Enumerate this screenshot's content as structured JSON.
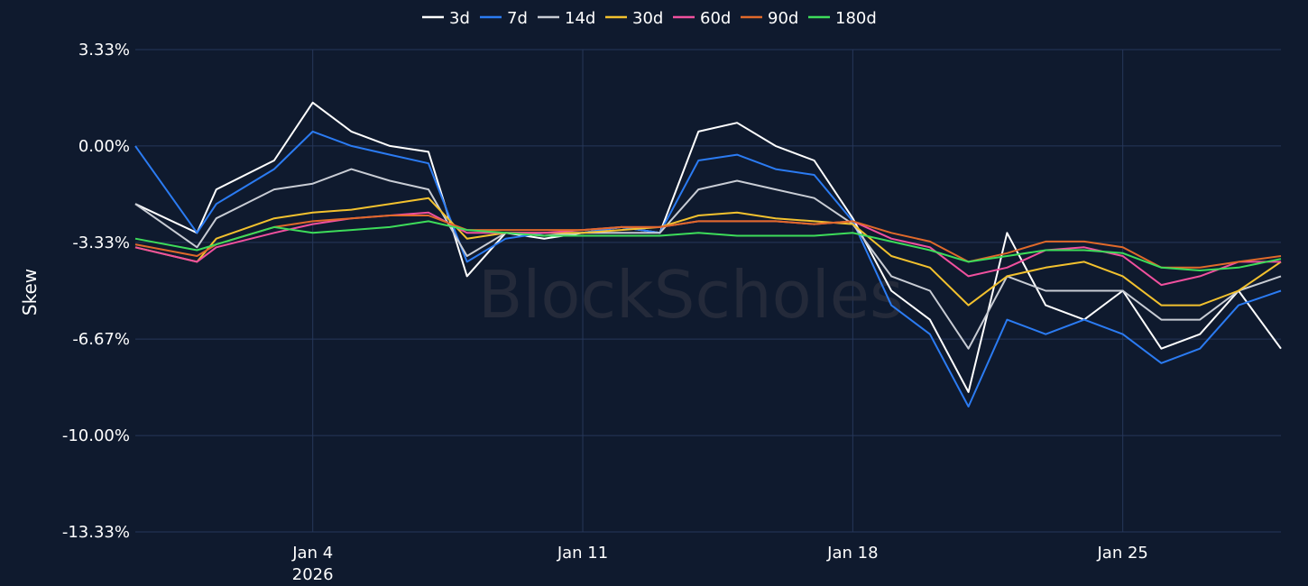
{
  "chart_data": {
    "type": "line",
    "xlabel": "",
    "ylabel": "Skew",
    "y_unit": "%",
    "ylim": [
      -13.33,
      3.33
    ],
    "y_ticks": [
      "3.33%",
      "0.00%",
      "-3.33%",
      "-6.67%",
      "-10.00%",
      "-13.33%"
    ],
    "x_ticks": [
      {
        "label": "Jan 4",
        "sublabel": "2026",
        "day": 4
      },
      {
        "label": "Jan 11",
        "sublabel": "",
        "day": 11
      },
      {
        "label": "Jan 18",
        "sublabel": "",
        "day": 18
      },
      {
        "label": "Jan 25",
        "sublabel": "",
        "day": 25
      }
    ],
    "x_range_days": [
      -0.6,
      29.1
    ],
    "legend_position": "top-center",
    "grid": true,
    "watermark": "BlockScholes",
    "series": [
      {
        "name": "3d",
        "color": "#ffffff",
        "x": [
          -0.6,
          1.0,
          1.5,
          3.0,
          4.0,
          5.0,
          6.0,
          7.0,
          8.0,
          9.0,
          10.0,
          11.0,
          12.0,
          13.0,
          14.0,
          15.0,
          16.0,
          17.0,
          18.0,
          19.0,
          20.0,
          21.0,
          22.0,
          23.0,
          24.0,
          25.0,
          26.0,
          27.0,
          28.0,
          29.1
        ],
        "y": [
          -2.0,
          -3.0,
          -1.5,
          -0.5,
          1.5,
          0.5,
          0.0,
          -0.2,
          -4.5,
          -3.0,
          -3.2,
          -3.0,
          -2.8,
          -3.0,
          0.5,
          0.8,
          0.0,
          -0.5,
          -2.5,
          -5.0,
          -6.0,
          -8.5,
          -3.0,
          -5.5,
          -6.0,
          -5.0,
          -7.0,
          -6.5,
          -5.0,
          -7.0
        ]
      },
      {
        "name": "7d",
        "color": "#2b7bf2",
        "x": [
          -0.6,
          1.0,
          1.5,
          3.0,
          4.0,
          5.0,
          6.0,
          7.0,
          8.0,
          9.0,
          10.0,
          11.0,
          12.0,
          13.0,
          14.0,
          15.0,
          16.0,
          17.0,
          18.0,
          19.0,
          20.0,
          21.0,
          22.0,
          23.0,
          24.0,
          25.0,
          26.0,
          27.0,
          28.0,
          29.1
        ],
        "y": [
          0.0,
          -3.0,
          -2.0,
          -0.8,
          0.5,
          0.0,
          -0.3,
          -0.6,
          -4.0,
          -3.2,
          -3.0,
          -3.0,
          -2.8,
          -3.0,
          -0.5,
          -0.3,
          -0.8,
          -1.0,
          -2.6,
          -5.5,
          -6.5,
          -9.0,
          -6.0,
          -6.5,
          -6.0,
          -6.5,
          -7.5,
          -7.0,
          -5.5,
          -5.0
        ]
      },
      {
        "name": "14d",
        "color": "#c8ccd4",
        "x": [
          -0.6,
          1.0,
          1.5,
          3.0,
          4.0,
          5.0,
          6.0,
          7.0,
          8.0,
          9.0,
          10.0,
          11.0,
          12.0,
          13.0,
          14.0,
          15.0,
          16.0,
          17.0,
          18.0,
          19.0,
          20.0,
          21.0,
          22.0,
          23.0,
          24.0,
          25.0,
          26.0,
          27.0,
          28.0,
          29.1
        ],
        "y": [
          -2.0,
          -3.5,
          -2.5,
          -1.5,
          -1.3,
          -0.8,
          -1.2,
          -1.5,
          -3.8,
          -3.0,
          -3.1,
          -3.0,
          -3.0,
          -3.0,
          -1.5,
          -1.2,
          -1.5,
          -1.8,
          -2.7,
          -4.5,
          -5.0,
          -7.0,
          -4.5,
          -5.0,
          -5.0,
          -5.0,
          -6.0,
          -6.0,
          -5.0,
          -4.5
        ]
      },
      {
        "name": "30d",
        "color": "#f2c12e",
        "x": [
          -0.6,
          1.0,
          1.5,
          3.0,
          4.0,
          5.0,
          6.0,
          7.0,
          8.0,
          9.0,
          10.0,
          11.0,
          12.0,
          13.0,
          14.0,
          15.0,
          16.0,
          17.0,
          18.0,
          19.0,
          20.0,
          21.0,
          22.0,
          23.0,
          24.0,
          25.0,
          26.0,
          27.0,
          28.0,
          29.1
        ],
        "y": [
          -3.5,
          -4.0,
          -3.2,
          -2.5,
          -2.3,
          -2.2,
          -2.0,
          -1.8,
          -3.2,
          -3.0,
          -3.0,
          -3.0,
          -2.9,
          -2.8,
          -2.4,
          -2.3,
          -2.5,
          -2.6,
          -2.7,
          -3.8,
          -4.2,
          -5.5,
          -4.5,
          -4.2,
          -4.0,
          -4.5,
          -5.5,
          -5.5,
          -5.0,
          -4.0
        ]
      },
      {
        "name": "60d",
        "color": "#f0509e",
        "x": [
          -0.6,
          1.0,
          1.5,
          3.0,
          4.0,
          5.0,
          6.0,
          7.0,
          8.0,
          9.0,
          10.0,
          11.0,
          12.0,
          13.0,
          14.0,
          15.0,
          16.0,
          17.0,
          18.0,
          19.0,
          20.0,
          21.0,
          22.0,
          23.0,
          24.0,
          25.0,
          26.0,
          27.0,
          28.0,
          29.1
        ],
        "y": [
          -3.5,
          -4.0,
          -3.5,
          -3.0,
          -2.7,
          -2.5,
          -2.4,
          -2.3,
          -3.0,
          -3.0,
          -3.0,
          -2.9,
          -2.8,
          -2.8,
          -2.6,
          -2.6,
          -2.6,
          -2.7,
          -2.6,
          -3.2,
          -3.5,
          -4.5,
          -4.2,
          -3.6,
          -3.5,
          -3.8,
          -4.8,
          -4.5,
          -4.0,
          -4.0
        ]
      },
      {
        "name": "90d",
        "color": "#e0692a",
        "x": [
          -0.6,
          1.0,
          1.5,
          3.0,
          4.0,
          5.0,
          6.0,
          7.0,
          8.0,
          9.0,
          10.0,
          11.0,
          12.0,
          13.0,
          14.0,
          15.0,
          16.0,
          17.0,
          18.0,
          19.0,
          20.0,
          21.0,
          22.0,
          23.0,
          24.0,
          25.0,
          26.0,
          27.0,
          28.0,
          29.1
        ],
        "y": [
          -3.4,
          -3.8,
          -3.4,
          -2.8,
          -2.6,
          -2.5,
          -2.4,
          -2.4,
          -2.9,
          -2.9,
          -2.9,
          -2.9,
          -2.8,
          -2.8,
          -2.6,
          -2.6,
          -2.6,
          -2.7,
          -2.6,
          -3.0,
          -3.3,
          -4.0,
          -3.7,
          -3.3,
          -3.3,
          -3.5,
          -4.2,
          -4.2,
          -4.0,
          -3.8
        ]
      },
      {
        "name": "180d",
        "color": "#3ddc5a",
        "x": [
          -0.6,
          1.0,
          1.5,
          3.0,
          4.0,
          5.0,
          6.0,
          7.0,
          8.0,
          9.0,
          10.0,
          11.0,
          12.0,
          13.0,
          14.0,
          15.0,
          16.0,
          17.0,
          18.0,
          19.0,
          20.0,
          21.0,
          22.0,
          23.0,
          24.0,
          25.0,
          26.0,
          27.0,
          28.0,
          29.1
        ],
        "y": [
          -3.2,
          -3.6,
          -3.4,
          -2.8,
          -3.0,
          -2.9,
          -2.8,
          -2.6,
          -2.9,
          -3.0,
          -3.1,
          -3.1,
          -3.1,
          -3.1,
          -3.0,
          -3.1,
          -3.1,
          -3.1,
          -3.0,
          -3.3,
          -3.6,
          -4.0,
          -3.8,
          -3.6,
          -3.6,
          -3.7,
          -4.2,
          -4.3,
          -4.2,
          -3.9
        ]
      }
    ]
  }
}
